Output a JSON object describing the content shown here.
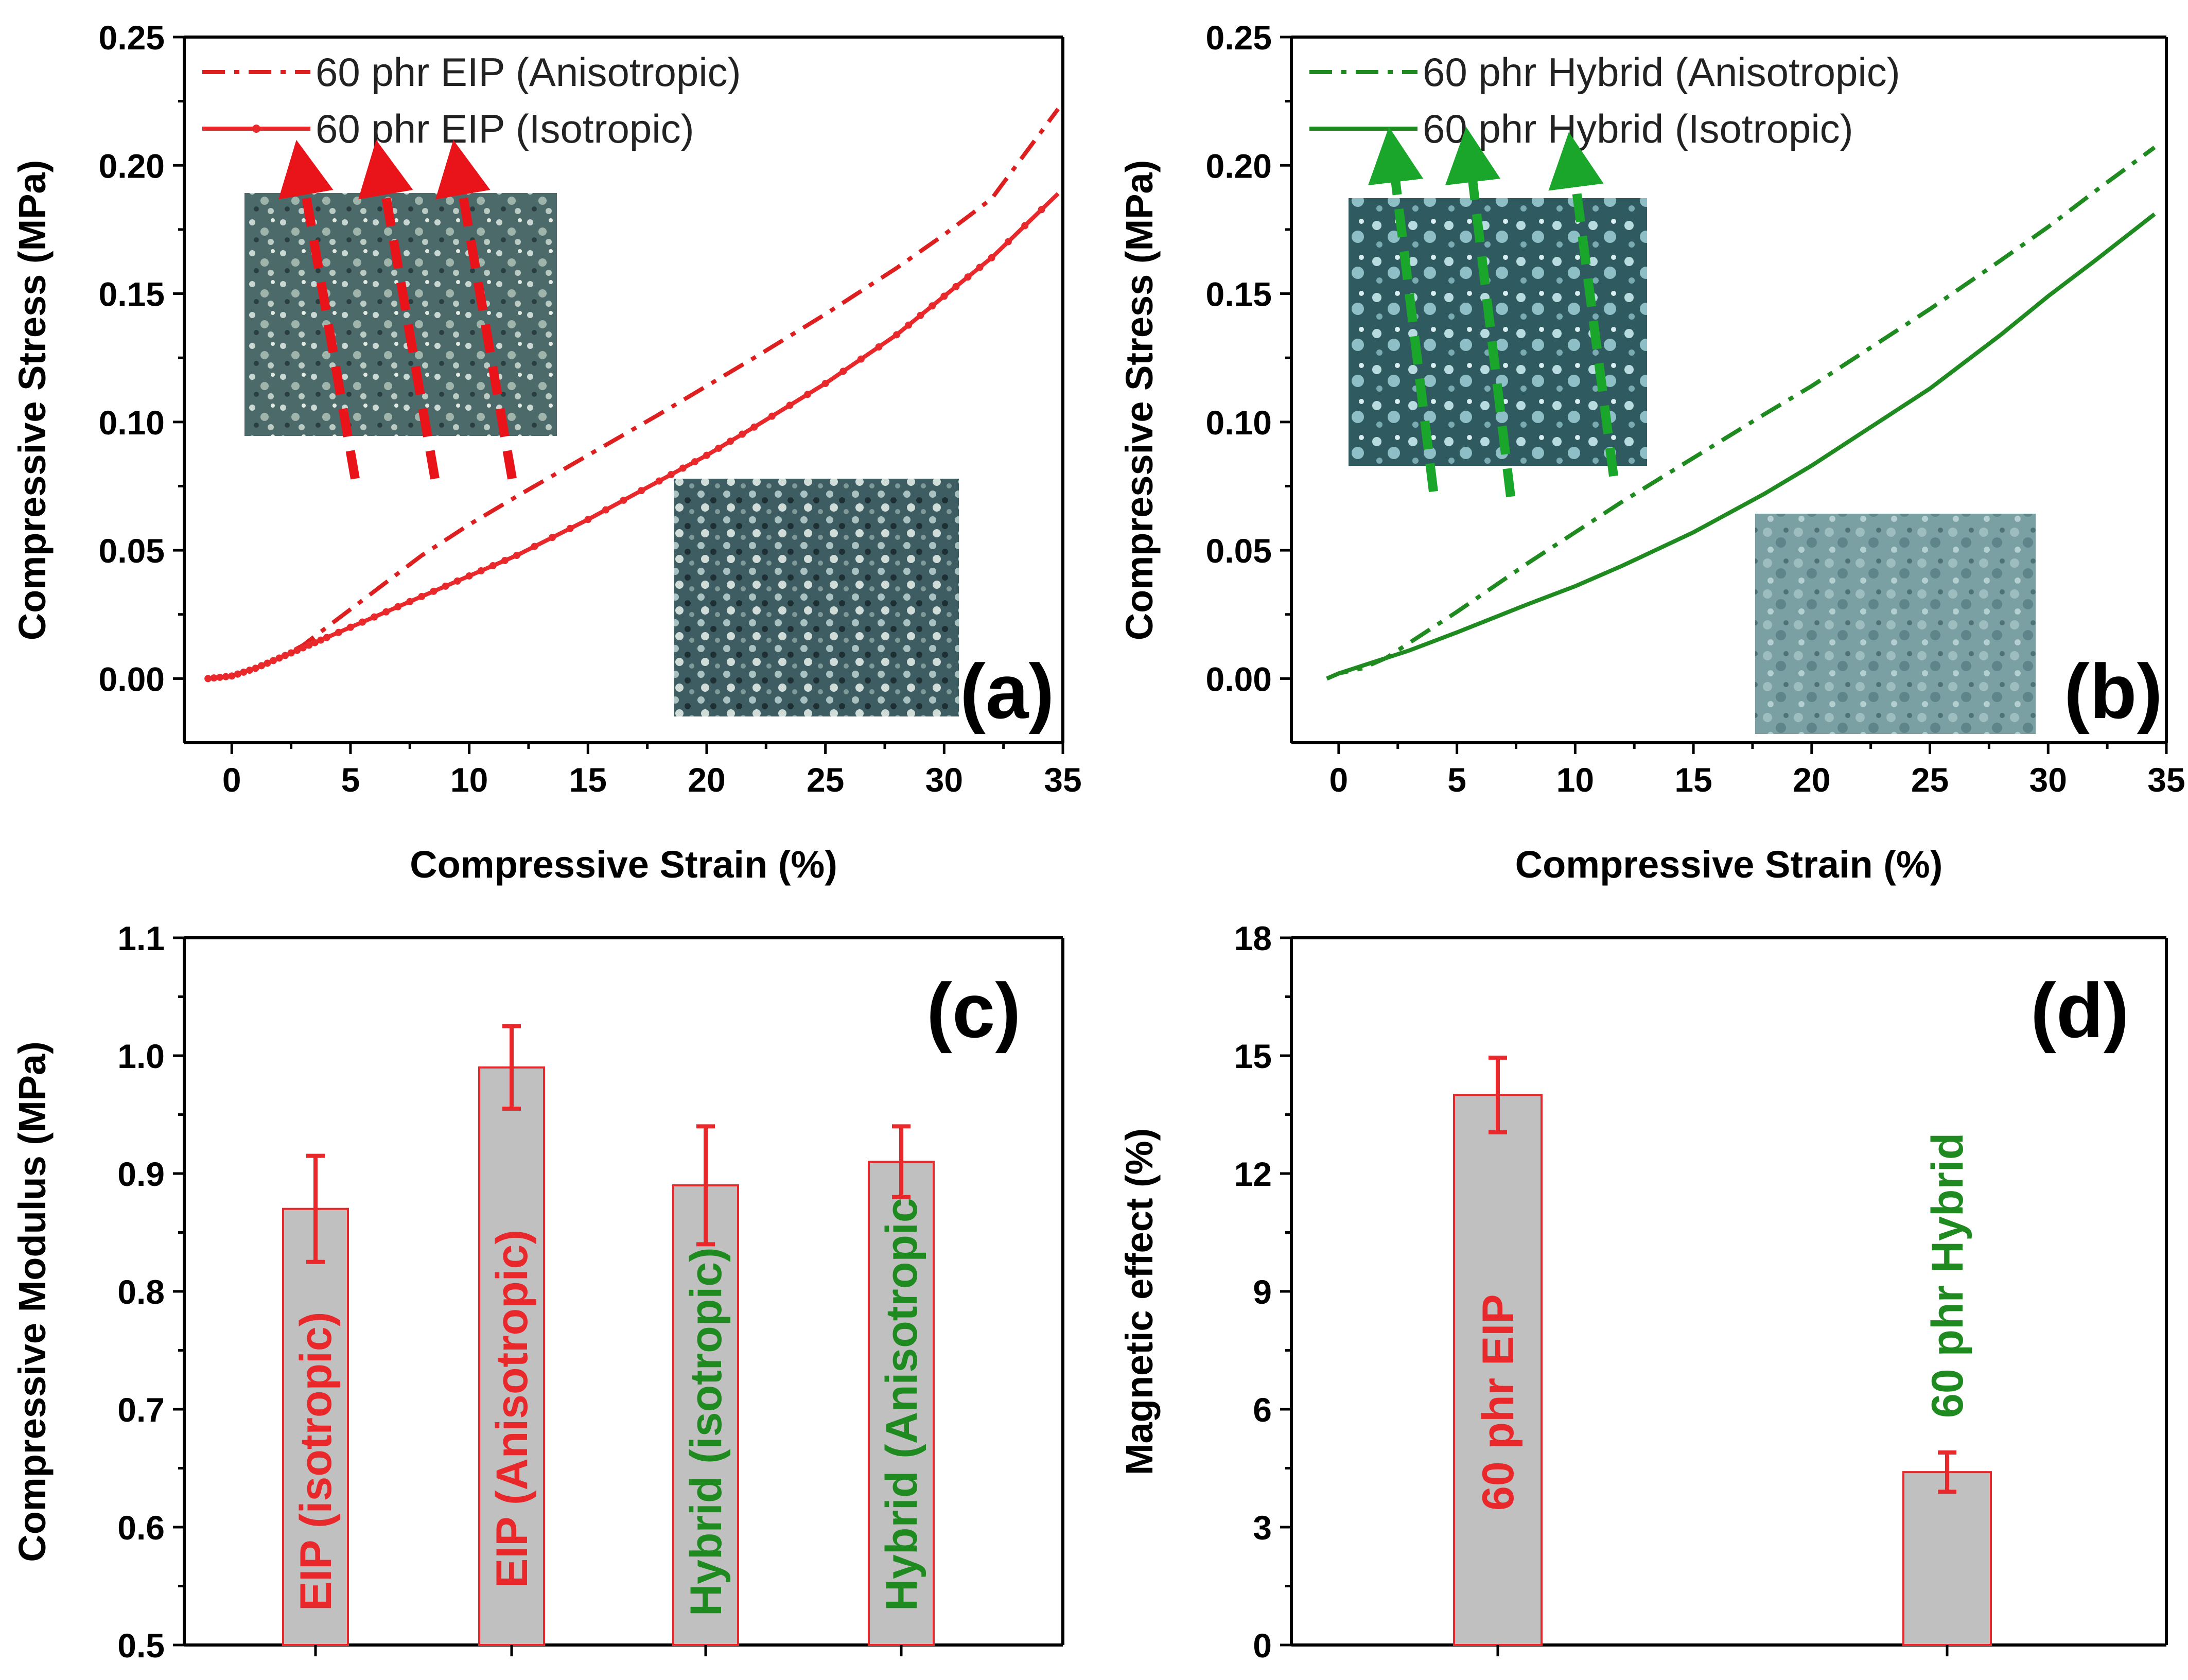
{
  "colors": {
    "eip": "#e8282a",
    "eip_anisotropic": "#dd1f1f",
    "hybrid": "#1f8a1f",
    "bar_fill": "#c0c0c0",
    "bar_edge": "#e8282a",
    "error_bar": "#e8282a",
    "arrow_red": "#e8141a",
    "arrow_green": "#19a62a"
  },
  "chart_data": [
    {
      "panel": "a",
      "type": "line",
      "panel_label": "(a)",
      "xlabel": "Compressive Strain (%)",
      "ylabel": "Compressive Stress (MPa)",
      "xlim": [
        -2,
        35
      ],
      "ylim": [
        -0.025,
        0.25
      ],
      "xticks": [
        0,
        5,
        10,
        15,
        20,
        25,
        30,
        35
      ],
      "yticks": [
        "0.00",
        "0.05",
        "0.10",
        "0.15",
        "0.20",
        "0.25"
      ],
      "legend_position": "top-left",
      "series": [
        {
          "name": "60 phr EIP (Anisotropic)",
          "style": "dash-dot",
          "color_key": "eip_anisotropic",
          "x": [
            -1,
            0,
            1,
            2,
            3,
            4,
            6,
            8,
            10,
            12,
            15,
            18,
            20,
            22,
            25,
            28,
            30,
            32,
            34.8
          ],
          "y": [
            0.0,
            0.001,
            0.004,
            0.008,
            0.013,
            0.02,
            0.034,
            0.048,
            0.06,
            0.071,
            0.087,
            0.103,
            0.114,
            0.125,
            0.142,
            0.16,
            0.173,
            0.187,
            0.222
          ]
        },
        {
          "name": "60 phr EIP (Isotropic)",
          "style": "solid-markers",
          "color_key": "eip",
          "x": [
            -1,
            0,
            1,
            2,
            3,
            4,
            6,
            8,
            10,
            12,
            15,
            18,
            20,
            22,
            25,
            28,
            30,
            32,
            34.8
          ],
          "y": [
            0.0,
            0.001,
            0.004,
            0.008,
            0.012,
            0.016,
            0.024,
            0.032,
            0.04,
            0.048,
            0.062,
            0.077,
            0.087,
            0.098,
            0.115,
            0.134,
            0.149,
            0.164,
            0.189
          ]
        }
      ]
    },
    {
      "panel": "b",
      "type": "line",
      "panel_label": "(b)",
      "xlabel": "Compressive Strain (%)",
      "ylabel": "Compressive Stress (MPa)",
      "xlim": [
        -2,
        35
      ],
      "ylim": [
        -0.025,
        0.25
      ],
      "xticks": [
        0,
        5,
        10,
        15,
        20,
        25,
        30,
        35
      ],
      "yticks": [
        "0.00",
        "0.05",
        "0.10",
        "0.15",
        "0.20",
        "0.25"
      ],
      "legend_position": "top-left",
      "series": [
        {
          "name": "60 phr Hybrid (Anisotropic)",
          "style": "dash-dot",
          "color_key": "hybrid",
          "x": [
            -0.5,
            0,
            1,
            2,
            3,
            5,
            8,
            10,
            12,
            15,
            18,
            20,
            22,
            25,
            28,
            30,
            32,
            34.5
          ],
          "y": [
            0.0,
            0.002,
            0.004,
            0.008,
            0.014,
            0.026,
            0.045,
            0.057,
            0.069,
            0.086,
            0.103,
            0.114,
            0.126,
            0.144,
            0.163,
            0.176,
            0.19,
            0.207
          ]
        },
        {
          "name": "60 phr Hybrid (Isotropic)",
          "style": "solid",
          "color_key": "hybrid",
          "x": [
            -0.5,
            0,
            1,
            2,
            3,
            5,
            8,
            10,
            12,
            15,
            18,
            20,
            22,
            25,
            28,
            30,
            32,
            34.5
          ],
          "y": [
            0.0,
            0.002,
            0.005,
            0.008,
            0.011,
            0.018,
            0.029,
            0.036,
            0.044,
            0.057,
            0.072,
            0.083,
            0.095,
            0.113,
            0.134,
            0.149,
            0.163,
            0.181
          ]
        }
      ]
    },
    {
      "panel": "c",
      "type": "bar",
      "panel_label": "(c)",
      "xlabel": "",
      "ylabel": "Compressive Modulus (MPa)",
      "ylim": [
        0.5,
        1.1
      ],
      "yticks": [
        "0.5",
        "0.6",
        "0.7",
        "0.8",
        "0.9",
        "1.0",
        "1.1"
      ],
      "categories": [
        "EIP (isotropic)",
        "EIP (Anisotropic)",
        "Hybrid (isotropic)",
        "Hybrid (Anisotropic"
      ],
      "category_colors": [
        "eip",
        "eip",
        "hybrid",
        "hybrid"
      ],
      "values": [
        0.87,
        0.99,
        0.89,
        0.91
      ],
      "errors": [
        0.045,
        0.035,
        0.05,
        0.03
      ]
    },
    {
      "panel": "d",
      "type": "bar",
      "panel_label": "(d)",
      "xlabel": "",
      "ylabel": "Magnetic effect (%)",
      "ylim": [
        0,
        18
      ],
      "yticks": [
        "0",
        "3",
        "6",
        "9",
        "12",
        "15",
        "18"
      ],
      "categories": [
        "60 phr EIP",
        "60 phr Hybrid"
      ],
      "category_colors": [
        "eip",
        "hybrid"
      ],
      "values": [
        14.0,
        4.4
      ],
      "errors": [
        0.95,
        0.5
      ]
    }
  ]
}
